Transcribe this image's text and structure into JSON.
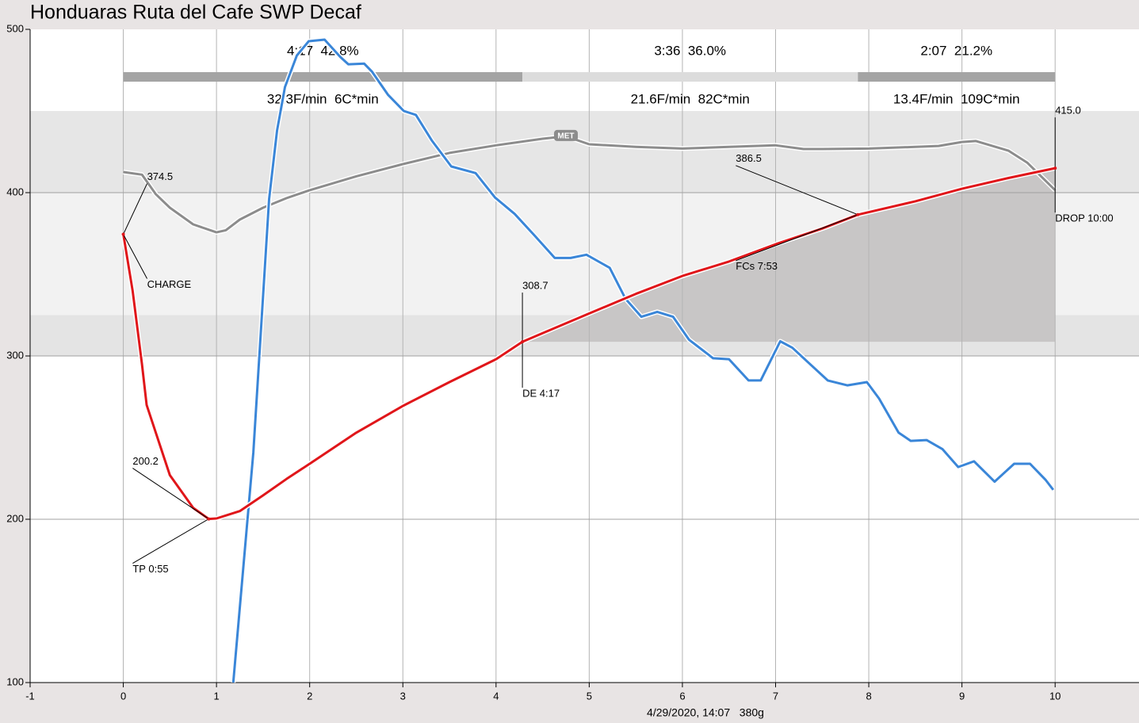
{
  "chart_data": {
    "type": "line",
    "title": "Honduaras Ruta del Cafe SWP Decaf",
    "footer": "4/29/2020, 14:07   380g",
    "xlim": [
      -1,
      10.9
    ],
    "ylim": [
      100,
      500
    ],
    "xticks": [
      -1,
      0,
      1,
      2,
      3,
      4,
      5,
      6,
      7,
      8,
      9,
      10
    ],
    "yticks": [
      100,
      200,
      300,
      400,
      500
    ],
    "grid": true,
    "y_bands": [
      {
        "from": 400,
        "to": 450,
        "color": "#e6e6e6"
      },
      {
        "from": 325,
        "to": 400,
        "color": "#f2f2f2"
      },
      {
        "from": 300,
        "to": 325,
        "color": "#e4e4e4"
      }
    ],
    "series": [
      {
        "color": "#8c8c8c",
        "x": [
          0,
          0.2,
          0.35,
          0.5,
          0.75,
          1,
          1.1,
          1.25,
          1.5,
          1.75,
          2,
          2.5,
          3,
          3.5,
          4,
          4.5,
          4.75,
          5,
          5.5,
          6,
          6.5,
          7,
          7.3,
          7.5,
          8,
          8.5,
          8.75,
          9,
          9.15,
          9.5,
          9.7,
          10
        ],
        "values": [
          412.6,
          411,
          399,
          390.8,
          380.6,
          375.7,
          377,
          383.5,
          390.8,
          396.6,
          401.5,
          410,
          417.5,
          424.3,
          429,
          433,
          434.5,
          429.6,
          428,
          427,
          428,
          429,
          426.7,
          426.7,
          427,
          428,
          428.6,
          431,
          431.6,
          425.7,
          418.4,
          401.5
        ]
      },
      {
        "color": "#3a86d8",
        "x": [
          1.18,
          1.395,
          1.565,
          1.65,
          1.735,
          1.862,
          1.99,
          2.16,
          2.33,
          2.415,
          2.585,
          2.67,
          2.84,
          3.01,
          3.14,
          3.31,
          3.52,
          3.78,
          3.99,
          4.2,
          4.41,
          4.63,
          4.8,
          4.97,
          5.22,
          5.39,
          5.56,
          5.73,
          5.9,
          6.07,
          6.33,
          6.5,
          6.71,
          6.84,
          7.05,
          7.18,
          7.35,
          7.56,
          7.77,
          7.98,
          8.11,
          8.32,
          8.45,
          8.62,
          8.79,
          8.96,
          9.13,
          9.35,
          9.56,
          9.73,
          9.9,
          9.98
        ],
        "values": [
          100,
          240.8,
          396,
          437.9,
          464.6,
          484,
          492.7,
          493.7,
          483,
          478.6,
          479,
          474,
          460,
          450,
          447.6,
          432,
          416,
          412,
          397,
          387,
          374,
          360,
          360,
          362,
          354,
          335,
          324,
          327,
          324,
          310,
          298.6,
          298,
          285,
          285,
          309,
          305,
          296,
          285,
          282,
          284,
          274,
          253,
          248,
          248.5,
          243,
          232,
          235.5,
          223,
          234,
          234,
          224,
          218
        ]
      },
      {
        "color": "#e0161a",
        "x": [
          0,
          0.1,
          0.2,
          0.25,
          0.5,
          0.75,
          0.917,
          1,
          1.25,
          1.5,
          1.75,
          2,
          2.5,
          3,
          3.5,
          4,
          4.283,
          4.5,
          5,
          5.5,
          6,
          6.5,
          7,
          7.5,
          7.883,
          8.5,
          9,
          9.5,
          10
        ],
        "values": [
          374.5,
          340,
          295,
          270,
          227,
          207,
          200.2,
          200.5,
          205,
          214.6,
          224.6,
          234,
          253,
          269.4,
          284,
          298,
          308.7,
          314,
          326,
          338,
          349,
          357.8,
          368.4,
          378,
          386.5,
          394.7,
          402.4,
          409,
          415
        ]
      }
    ],
    "events": [
      {
        "label": "CHARGE",
        "x": 0,
        "y": 374.5,
        "value_label": "374.5"
      },
      {
        "label": "TP 0:55",
        "x": 0.917,
        "y": 200.2,
        "value_label": "200.2"
      },
      {
        "label": "DE 4:17",
        "x": 4.283,
        "y": 308.7,
        "value_label": "308.7"
      },
      {
        "label": "FCs 7:53",
        "x": 7.883,
        "y": 386.5,
        "value_label": "386.5"
      },
      {
        "label": "DROP 10:00",
        "x": 10,
        "y": 415.0,
        "value_label": "415.0"
      }
    ],
    "met": {
      "label": "MET",
      "x": 4.75,
      "y": 434.5
    },
    "phases": [
      {
        "label": "4:17  42.8%",
        "stats": "32.3F/min  6C*min",
        "color": "#a4a4a4"
      },
      {
        "label": "3:36  36.0%",
        "stats": "21.6F/min  82C*min",
        "color": "#dcdcdc"
      },
      {
        "label": "2:07  21.2%",
        "stats": "13.4F/min  109C*min",
        "color": "#a4a4a4"
      }
    ]
  }
}
